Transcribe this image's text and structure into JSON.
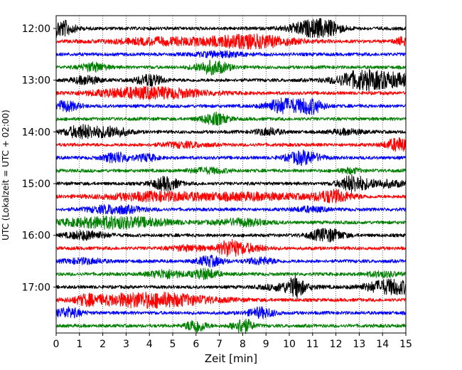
{
  "chart_data": {
    "type": "line",
    "title": "",
    "xlabel": "Zeit  [min]",
    "ylabel": "UTC (Lokalzeit = UTC + 02:00)",
    "xlim": [
      0,
      15
    ],
    "x_ticks": [
      "0",
      "1",
      "2",
      "3",
      "4",
      "5",
      "6",
      "7",
      "8",
      "9",
      "10",
      "11",
      "12",
      "13",
      "14",
      "15"
    ],
    "y_ticks": [
      {
        "label": "12:00",
        "row": 0
      },
      {
        "label": "13:00",
        "row": 4
      },
      {
        "label": "14:00",
        "row": 8
      },
      {
        "label": "15:00",
        "row": 12
      },
      {
        "label": "16:00",
        "row": 16
      },
      {
        "label": "17:00",
        "row": 20
      }
    ],
    "row_minutes": 15,
    "grid": "vertical dotted at each minute",
    "trace_colors": [
      "#000000",
      "#ff0000",
      "#0000ff",
      "#008000"
    ],
    "rows": [
      {
        "start": "12:00",
        "events": [
          [
            0.2,
            1.0,
            0.4
          ],
          [
            10.7,
            0.7,
            0.6
          ],
          [
            11.6,
            0.8,
            0.5
          ]
        ]
      },
      {
        "start": "12:15",
        "events": [
          [
            4.5,
            0.4,
            1.5
          ],
          [
            8.3,
            0.8,
            1.3
          ],
          [
            15.0,
            0.6,
            0.3
          ]
        ]
      },
      {
        "start": "12:30",
        "events": [
          [
            7.0,
            0.3,
            0.8
          ]
        ]
      },
      {
        "start": "12:45",
        "events": [
          [
            1.6,
            0.5,
            0.4
          ],
          [
            6.7,
            0.8,
            0.5
          ]
        ]
      },
      {
        "start": "13:00",
        "events": [
          [
            1.3,
            0.5,
            0.4
          ],
          [
            4.0,
            0.7,
            0.4
          ],
          [
            12.9,
            0.5,
            0.6
          ],
          [
            14.0,
            0.9,
            1.2
          ]
        ]
      },
      {
        "start": "13:15",
        "events": [
          [
            4.0,
            0.7,
            1.6
          ]
        ]
      },
      {
        "start": "13:30",
        "events": [
          [
            0.4,
            0.6,
            0.4
          ],
          [
            9.7,
            0.9,
            0.5
          ],
          [
            10.9,
            0.9,
            0.4
          ]
        ]
      },
      {
        "start": "13:45",
        "events": [
          [
            6.8,
            0.7,
            0.4
          ]
        ]
      },
      {
        "start": "14:00",
        "events": [
          [
            1.1,
            0.8,
            0.5
          ],
          [
            2.4,
            0.6,
            0.5
          ],
          [
            9.1,
            0.4,
            0.4
          ],
          [
            12.5,
            0.3,
            0.5
          ]
        ]
      },
      {
        "start": "14:15",
        "events": [
          [
            5.5,
            0.3,
            0.7
          ],
          [
            14.7,
            0.8,
            0.4
          ]
        ]
      },
      {
        "start": "14:30",
        "events": [
          [
            2.6,
            0.6,
            0.4
          ],
          [
            3.9,
            0.4,
            0.3
          ],
          [
            10.6,
            0.8,
            0.5
          ]
        ]
      },
      {
        "start": "14:45",
        "events": [
          [
            6.5,
            0.3,
            0.6
          ],
          [
            12.6,
            0.3,
            0.3
          ]
        ]
      },
      {
        "start": "15:00",
        "events": [
          [
            4.7,
            0.8,
            0.4
          ],
          [
            12.7,
            0.9,
            0.4
          ],
          [
            14.0,
            0.4,
            0.8
          ]
        ]
      },
      {
        "start": "15:15",
        "events": [
          [
            4.3,
            0.5,
            1.6
          ],
          [
            8.5,
            0.4,
            1.6
          ],
          [
            11.9,
            0.7,
            0.6
          ]
        ]
      },
      {
        "start": "15:30",
        "events": [
          [
            2.5,
            0.5,
            0.8
          ],
          [
            10.9,
            0.3,
            0.5
          ]
        ]
      },
      {
        "start": "15:45",
        "events": [
          [
            2.5,
            0.7,
            1.6
          ],
          [
            8.0,
            0.4,
            0.8
          ]
        ]
      },
      {
        "start": "16:00",
        "events": [
          [
            1.3,
            0.5,
            0.6
          ],
          [
            11.6,
            0.8,
            0.5
          ]
        ]
      },
      {
        "start": "16:15",
        "events": [
          [
            5.7,
            0.3,
            0.6
          ],
          [
            7.4,
            0.8,
            0.3
          ],
          [
            8.1,
            0.5,
            0.6
          ]
        ]
      },
      {
        "start": "16:30",
        "events": [
          [
            1.2,
            0.3,
            0.6
          ],
          [
            6.6,
            0.6,
            0.4
          ],
          [
            8.8,
            0.4,
            0.4
          ]
        ]
      },
      {
        "start": "16:45",
        "events": [
          [
            4.7,
            0.5,
            0.5
          ],
          [
            6.4,
            0.6,
            0.4
          ],
          [
            14.0,
            0.3,
            0.5
          ]
        ]
      },
      {
        "start": "17:00",
        "events": [
          [
            10.0,
            0.5,
            0.7
          ],
          [
            10.3,
            0.9,
            0.2
          ],
          [
            14.4,
            0.9,
            0.8
          ]
        ]
      },
      {
        "start": "17:15",
        "events": [
          [
            1.3,
            0.4,
            0.3
          ],
          [
            4.0,
            0.9,
            1.8
          ]
        ]
      },
      {
        "start": "17:30",
        "events": [
          [
            0.5,
            0.6,
            0.4
          ],
          [
            8.8,
            0.6,
            0.4
          ]
        ]
      },
      {
        "start": "17:45",
        "events": [
          [
            6.0,
            0.8,
            0.3
          ],
          [
            8.0,
            0.9,
            0.3
          ]
        ]
      }
    ]
  }
}
